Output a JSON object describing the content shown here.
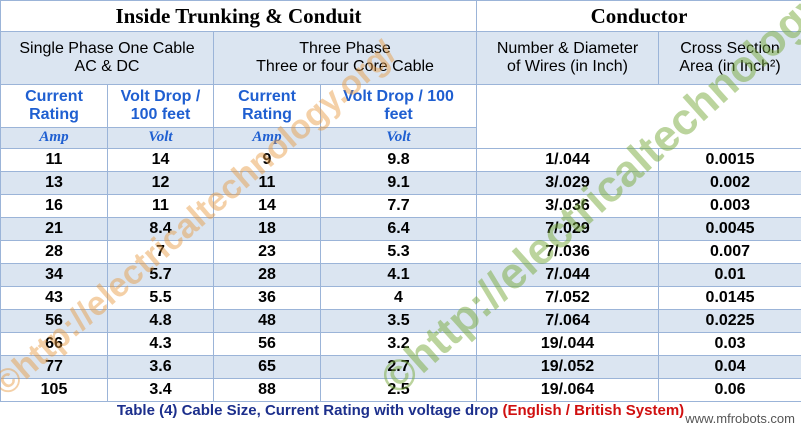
{
  "header": {
    "title_left": "Inside Trunking & Conduit",
    "title_right": "Conductor",
    "groups": [
      "Single Phase One Cable\nAC & DC",
      "Three Phase\nThree or four Core Cable",
      "Number & Diameter\nof Wires (in Inch)",
      "Cross Section\nArea (in Inch²)"
    ],
    "columns": [
      "Current\nRating",
      "Volt Drop /\n100 feet",
      "Current\nRating",
      "Volt Drop / 100\nfeet"
    ],
    "units": [
      "Amp",
      "Volt",
      "Amp",
      "Volt"
    ]
  },
  "table": {
    "rows": [
      [
        11,
        14,
        9,
        9.8,
        "1/.044",
        0.0015
      ],
      [
        13,
        12,
        11,
        9.1,
        "3/.029",
        0.002
      ],
      [
        16,
        11,
        14,
        7.7,
        "3/.036",
        0.003
      ],
      [
        21,
        8.4,
        18,
        6.4,
        "7/.029",
        0.0045
      ],
      [
        28,
        7,
        23,
        5.3,
        "7/.036",
        0.007
      ],
      [
        34,
        5.7,
        28,
        4.1,
        "7/.044",
        0.01
      ],
      [
        43,
        5.5,
        36,
        4,
        "7/.052",
        0.0145
      ],
      [
        56,
        4.8,
        48,
        3.5,
        "7/.064",
        0.0225
      ],
      [
        66,
        4.3,
        56,
        3.2,
        "19/.044",
        0.03
      ],
      [
        77,
        3.6,
        65,
        2.7,
        "19/.052",
        0.04
      ],
      [
        105,
        3.4,
        88,
        2.5,
        "19/.064",
        0.06
      ]
    ]
  },
  "caption": {
    "text": "Table (4) Cable Size, Current Rating with voltage drop",
    "note": "(English / British System)"
  },
  "watermarks": [
    "©http://electricaltechnology.org/",
    "©http://electricaltechnology.org/"
  ],
  "footer_mark": "www.mfrobots.com"
}
